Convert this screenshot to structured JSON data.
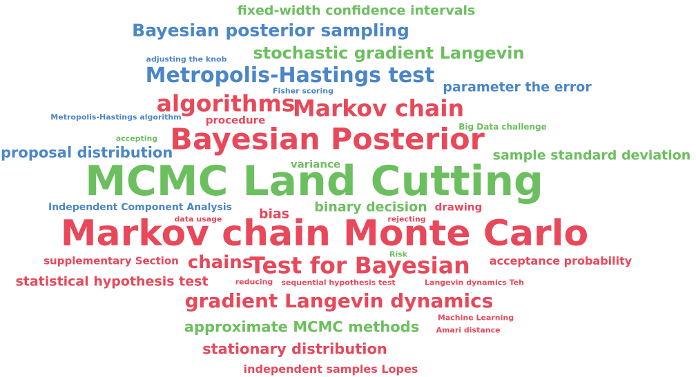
{
  "colors": {
    "red": "#e8485a",
    "green": "#6cbf5f",
    "blue": "#4a86c8"
  },
  "words": [
    {
      "text": "fixed-width confidence intervals",
      "color": "green"
    },
    {
      "text": "Bayesian posterior sampling",
      "color": "blue"
    },
    {
      "text": "adjusting the knob",
      "color": "blue"
    },
    {
      "text": "stochastic gradient Langevin",
      "color": "green"
    },
    {
      "text": "Metropolis-Hastings test",
      "color": "blue"
    },
    {
      "text": "Fisher scoring",
      "color": "blue"
    },
    {
      "text": "parameter the error",
      "color": "blue"
    },
    {
      "text": "algorithms",
      "color": "red"
    },
    {
      "text": "Markov chain",
      "color": "red"
    },
    {
      "text": "Metropolis-Hastings algorithm",
      "color": "blue"
    },
    {
      "text": "procedure",
      "color": "red"
    },
    {
      "text": "accepting",
      "color": "green"
    },
    {
      "text": "Big Data challenge",
      "color": "green"
    },
    {
      "text": "Bayesian Posterior",
      "color": "red"
    },
    {
      "text": "proposal distribution",
      "color": "blue"
    },
    {
      "text": "sample standard deviation",
      "color": "green"
    },
    {
      "text": "variance",
      "color": "green"
    },
    {
      "text": "MCMC Land Cutting",
      "color": "green"
    },
    {
      "text": "Independent Component Analysis",
      "color": "blue"
    },
    {
      "text": "bias",
      "color": "red"
    },
    {
      "text": "binary decision",
      "color": "green"
    },
    {
      "text": "drawing",
      "color": "red"
    },
    {
      "text": "data usage",
      "color": "red"
    },
    {
      "text": "rejecting",
      "color": "red"
    },
    {
      "text": "Markov chain Monte Carlo",
      "color": "red"
    },
    {
      "text": "supplementary Section",
      "color": "red"
    },
    {
      "text": "chains",
      "color": "red"
    },
    {
      "text": "Test for Bayesian",
      "color": "red"
    },
    {
      "text": "Risk",
      "color": "green"
    },
    {
      "text": "acceptance probability",
      "color": "red"
    },
    {
      "text": "statistical hypothesis test",
      "color": "red"
    },
    {
      "text": "reducing",
      "color": "red"
    },
    {
      "text": "sequential hypothesis test",
      "color": "red"
    },
    {
      "text": "Langevin dynamics Teh",
      "color": "red"
    },
    {
      "text": "gradient Langevin dynamics",
      "color": "red"
    },
    {
      "text": "Machine Learning",
      "color": "red"
    },
    {
      "text": "approximate MCMC methods",
      "color": "green"
    },
    {
      "text": "Amari distance",
      "color": "red"
    },
    {
      "text": "stationary distribution",
      "color": "red"
    },
    {
      "text": "independent samples Lopes",
      "color": "red"
    }
  ]
}
